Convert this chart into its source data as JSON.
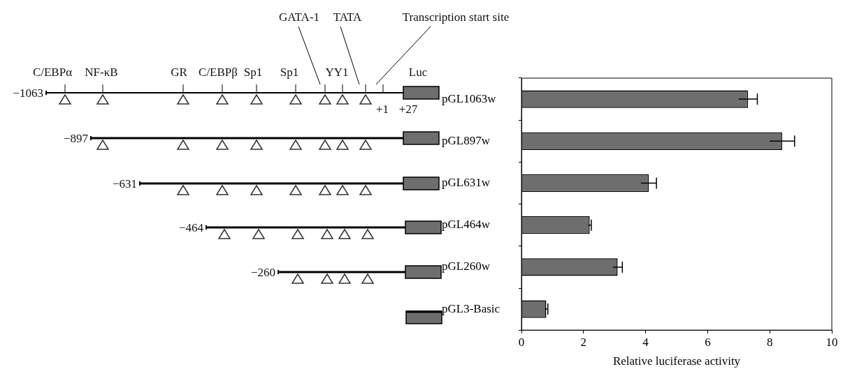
{
  "chart_data": {
    "type": "bar",
    "orientation": "horizontal",
    "categories": [
      "pGL1063w",
      "pGL897w",
      "pGL631w",
      "pGL464w",
      "pGL260w",
      "pGL3-Basic"
    ],
    "values": [
      7.3,
      8.4,
      4.1,
      2.2,
      3.1,
      0.8
    ],
    "errors": [
      0.3,
      0.4,
      0.25,
      0.05,
      0.15,
      0.05
    ],
    "color": "#6e6e6e",
    "xlim": [
      0,
      10
    ],
    "xticks": [
      0,
      2,
      4,
      6,
      8,
      10
    ],
    "xlabel": "Relative luciferase activity",
    "grid": false,
    "legend": false,
    "annotations": [
      "C/EBPα",
      "NF-κB",
      "GR",
      "C/EBPβ",
      "Sp1",
      "Sp1",
      "YY1",
      "GATA-1",
      "TATA",
      "Transcription start site",
      "Luc",
      "+1",
      "+27",
      "−1063",
      "−897",
      "−631",
      "−464",
      "−260"
    ]
  }
}
